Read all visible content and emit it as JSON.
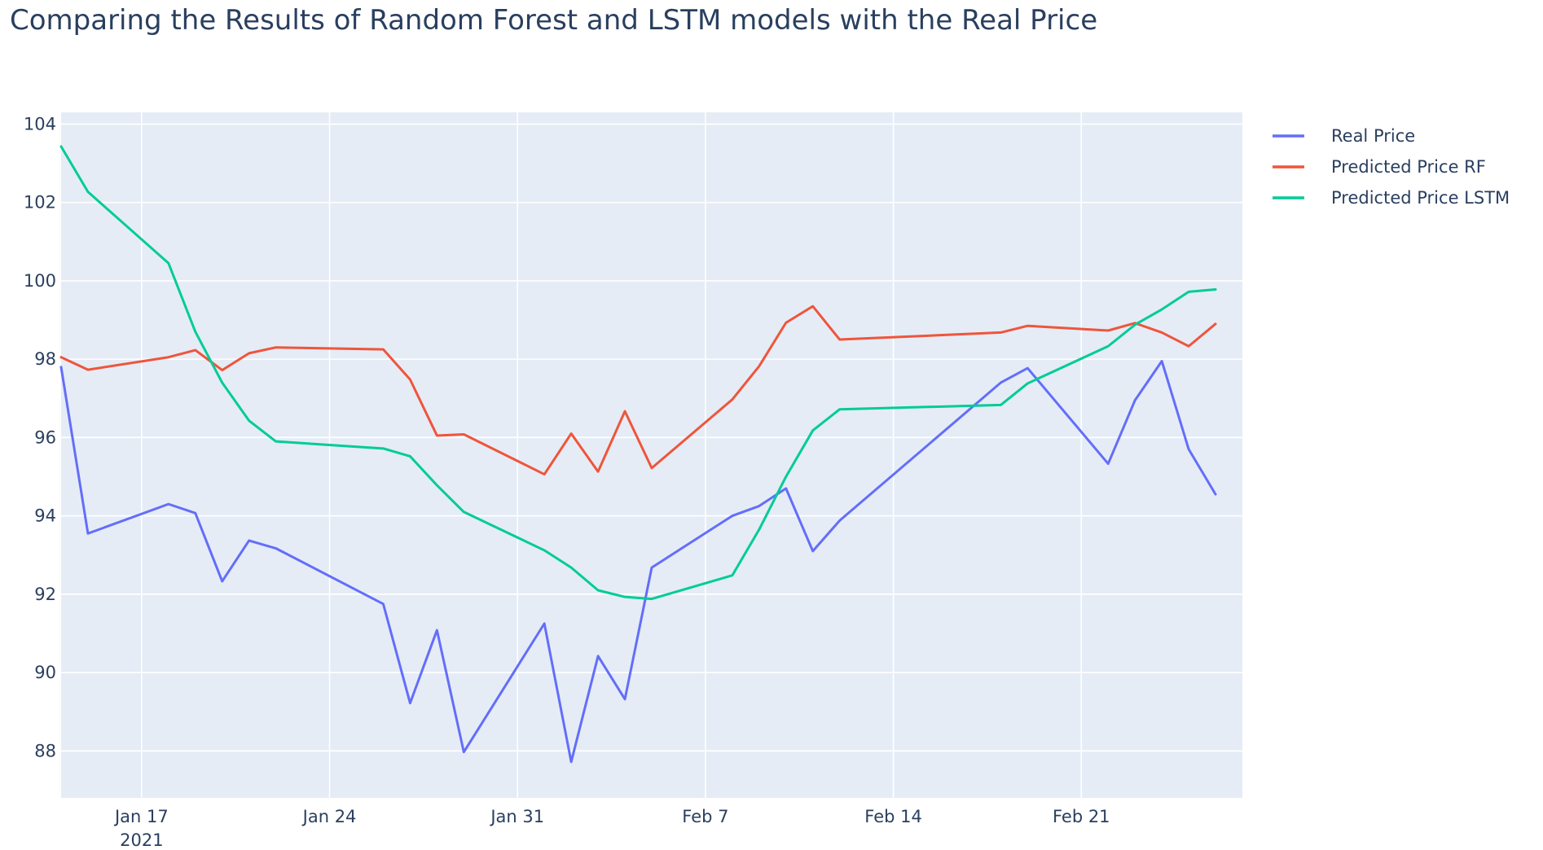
{
  "chart_data": {
    "type": "line",
    "title": "Comparing the Results of Random Forest and LSTM models with the Real Price",
    "xlabel": "",
    "ylabel": "",
    "x_range": [
      "2021-01-14",
      "2021-02-27"
    ],
    "ylim": [
      86.8,
      104.3
    ],
    "y_ticks": [
      88,
      90,
      92,
      94,
      96,
      98,
      100,
      102,
      104
    ],
    "x_ticks": [
      {
        "date": "2021-01-17",
        "label": "Jan 17",
        "sublabel": "2021"
      },
      {
        "date": "2021-01-24",
        "label": "Jan 24",
        "sublabel": ""
      },
      {
        "date": "2021-01-31",
        "label": "Jan 31",
        "sublabel": ""
      },
      {
        "date": "2021-02-07",
        "label": "Feb 7",
        "sublabel": ""
      },
      {
        "date": "2021-02-14",
        "label": "Feb 14",
        "sublabel": ""
      },
      {
        "date": "2021-02-21",
        "label": "Feb 21",
        "sublabel": ""
      }
    ],
    "grid": true,
    "legend_position": "top-right",
    "background_color": "#e5ecf6",
    "series": [
      {
        "name": "Real Price",
        "color": "#636efa",
        "points": [
          [
            "2021-01-14",
            97.8
          ],
          [
            "2021-01-15",
            93.55
          ],
          [
            "2021-01-18",
            94.3
          ],
          [
            "2021-01-19",
            94.07
          ],
          [
            "2021-01-20",
            92.33
          ],
          [
            "2021-01-21",
            93.37
          ],
          [
            "2021-01-22",
            93.17
          ],
          [
            "2021-01-26",
            91.75
          ],
          [
            "2021-01-27",
            89.22
          ],
          [
            "2021-01-28",
            91.08
          ],
          [
            "2021-01-29",
            87.97
          ],
          [
            "2021-02-01",
            91.25
          ],
          [
            "2021-02-02",
            87.72
          ],
          [
            "2021-02-03",
            90.42
          ],
          [
            "2021-02-04",
            89.32
          ],
          [
            "2021-02-05",
            92.68
          ],
          [
            "2021-02-08",
            94.0
          ],
          [
            "2021-02-09",
            94.25
          ],
          [
            "2021-02-10",
            94.7
          ],
          [
            "2021-02-11",
            93.1
          ],
          [
            "2021-02-12",
            93.88
          ],
          [
            "2021-02-18",
            97.4
          ],
          [
            "2021-02-19",
            97.77
          ],
          [
            "2021-02-22",
            95.33
          ],
          [
            "2021-02-23",
            96.95
          ],
          [
            "2021-02-24",
            97.95
          ],
          [
            "2021-02-25",
            95.7
          ],
          [
            "2021-02-26",
            94.55
          ]
        ]
      },
      {
        "name": "Predicted Price RF",
        "color": "#ef553b",
        "points": [
          [
            "2021-01-14",
            98.05
          ],
          [
            "2021-01-15",
            97.73
          ],
          [
            "2021-01-18",
            98.05
          ],
          [
            "2021-01-19",
            98.23
          ],
          [
            "2021-01-20",
            97.72
          ],
          [
            "2021-01-21",
            98.15
          ],
          [
            "2021-01-22",
            98.3
          ],
          [
            "2021-01-26",
            98.25
          ],
          [
            "2021-01-27",
            97.48
          ],
          [
            "2021-01-28",
            96.05
          ],
          [
            "2021-01-29",
            96.08
          ],
          [
            "2021-02-01",
            95.06
          ],
          [
            "2021-02-02",
            96.1
          ],
          [
            "2021-02-03",
            95.13
          ],
          [
            "2021-02-04",
            96.67
          ],
          [
            "2021-02-05",
            95.22
          ],
          [
            "2021-02-08",
            96.97
          ],
          [
            "2021-02-09",
            97.82
          ],
          [
            "2021-02-10",
            98.93
          ],
          [
            "2021-02-11",
            99.35
          ],
          [
            "2021-02-12",
            98.5
          ],
          [
            "2021-02-18",
            98.68
          ],
          [
            "2021-02-19",
            98.85
          ],
          [
            "2021-02-22",
            98.73
          ],
          [
            "2021-02-23",
            98.92
          ],
          [
            "2021-02-24",
            98.68
          ],
          [
            "2021-02-25",
            98.33
          ],
          [
            "2021-02-26",
            98.9
          ]
        ]
      },
      {
        "name": "Predicted Price LSTM",
        "color": "#00cc96",
        "points": [
          [
            "2021-01-14",
            103.43
          ],
          [
            "2021-01-15",
            102.27
          ],
          [
            "2021-01-18",
            100.45
          ],
          [
            "2021-01-19",
            98.7
          ],
          [
            "2021-01-20",
            97.4
          ],
          [
            "2021-01-21",
            96.43
          ],
          [
            "2021-01-22",
            95.9
          ],
          [
            "2021-01-26",
            95.72
          ],
          [
            "2021-01-27",
            95.52
          ],
          [
            "2021-01-28",
            94.78
          ],
          [
            "2021-01-29",
            94.1
          ],
          [
            "2021-02-01",
            93.12
          ],
          [
            "2021-02-02",
            92.68
          ],
          [
            "2021-02-03",
            92.1
          ],
          [
            "2021-02-04",
            91.93
          ],
          [
            "2021-02-05",
            91.88
          ],
          [
            "2021-02-08",
            92.48
          ],
          [
            "2021-02-09",
            93.65
          ],
          [
            "2021-02-10",
            95.0
          ],
          [
            "2021-02-11",
            96.18
          ],
          [
            "2021-02-12",
            96.72
          ],
          [
            "2021-02-18",
            96.83
          ],
          [
            "2021-02-19",
            97.38
          ],
          [
            "2021-02-22",
            98.33
          ],
          [
            "2021-02-23",
            98.88
          ],
          [
            "2021-02-24",
            99.27
          ],
          [
            "2021-02-25",
            99.72
          ],
          [
            "2021-02-26",
            99.78
          ]
        ]
      }
    ]
  }
}
